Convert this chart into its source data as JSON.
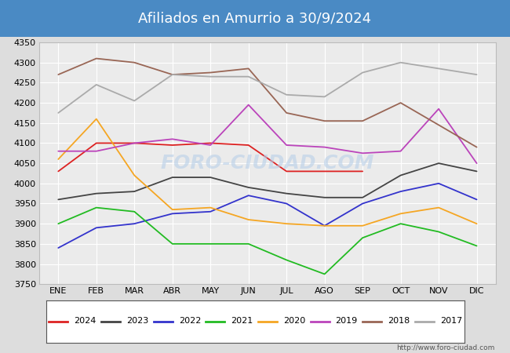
{
  "title": "Afiliados en Amurrio a 30/9/2024",
  "title_bg_color": "#4a8ac4",
  "title_text_color": "white",
  "ylim": [
    3750,
    4350
  ],
  "yticks": [
    3750,
    3800,
    3850,
    3900,
    3950,
    4000,
    4050,
    4100,
    4150,
    4200,
    4250,
    4300,
    4350
  ],
  "months": [
    "ENE",
    "FEB",
    "MAR",
    "ABR",
    "MAY",
    "JUN",
    "JUL",
    "AGO",
    "SEP",
    "OCT",
    "NOV",
    "DIC"
  ],
  "watermark": "FORO-CIUDAD.COM",
  "url": "http://www.foro-ciudad.com",
  "series": {
    "2024": {
      "color": "#dd2222",
      "data": [
        4030,
        4100,
        4100,
        4095,
        4100,
        4095,
        4030,
        4030,
        4030,
        null,
        null,
        null
      ]
    },
    "2023": {
      "color": "#444444",
      "data": [
        3960,
        3975,
        3980,
        4015,
        4015,
        3990,
        3975,
        3965,
        3965,
        4020,
        4050,
        4030
      ]
    },
    "2022": {
      "color": "#3333cc",
      "data": [
        3840,
        3890,
        3900,
        3925,
        3930,
        3970,
        3950,
        3895,
        3950,
        3980,
        4000,
        3960
      ]
    },
    "2021": {
      "color": "#22bb22",
      "data": [
        3900,
        3940,
        3930,
        3850,
        3850,
        3850,
        3810,
        3775,
        3865,
        3900,
        3880,
        3845
      ]
    },
    "2020": {
      "color": "#f5a623",
      "data": [
        4060,
        4160,
        4020,
        3935,
        3940,
        3910,
        3900,
        3895,
        3895,
        3925,
        3940,
        3900
      ]
    },
    "2019": {
      "color": "#bb44bb",
      "data": [
        4080,
        4080,
        4100,
        4110,
        4095,
        4195,
        4095,
        4090,
        4075,
        4080,
        4185,
        4050
      ]
    },
    "2018": {
      "color": "#996655",
      "data": [
        4270,
        4310,
        4300,
        4270,
        4275,
        4285,
        4175,
        4155,
        4155,
        4200,
        4145,
        4090
      ]
    },
    "2017": {
      "color": "#aaaaaa",
      "data": [
        4175,
        4245,
        4205,
        4270,
        4265,
        4265,
        4220,
        4215,
        4275,
        4300,
        4285,
        4270
      ]
    }
  },
  "legend_order": [
    "2024",
    "2023",
    "2022",
    "2021",
    "2020",
    "2019",
    "2018",
    "2017"
  ],
  "bg_color": "#dddddd",
  "plot_bg_color": "#ebebeb",
  "grid_color": "white",
  "fontsize_title": 13,
  "fontsize_ticks": 8,
  "fontsize_legend": 8
}
